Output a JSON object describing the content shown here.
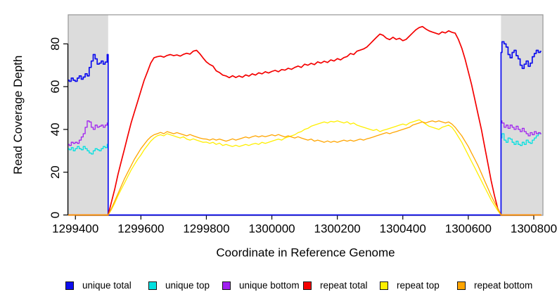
{
  "chart_data": {
    "type": "line",
    "title": "",
    "xlabel": "Coordinate in Reference Genome",
    "ylabel": "Read Coverage Depth",
    "xlim": [
      1299378,
      1300828
    ],
    "ylim": [
      0,
      93.6
    ],
    "xticks": [
      1299400,
      1299600,
      1299800,
      1300000,
      1300200,
      1300400,
      1300600,
      1300800
    ],
    "yticks": [
      0,
      20,
      40,
      60,
      80
    ],
    "grid": false,
    "legend_position": "bottom",
    "shade_color": "#dcdcdc",
    "shaded_regions": [
      {
        "name": "left-flank",
        "x1": 1299378,
        "x2": 1299500
      },
      {
        "name": "right-flank",
        "x1": 1300700,
        "x2": 1300828
      }
    ],
    "series": [
      {
        "name": "unique total",
        "color": "#0d0dee",
        "width": 1.7,
        "segments": [
          {
            "x0": 1299378,
            "dx": 6.1,
            "step": true,
            "v": [
              63,
              62.5,
              64,
              63,
              62.5,
              64,
              65,
              63.5,
              64.5,
              66,
              65,
              69,
              72,
              75,
              73,
              70.5,
              71,
              72,
              70.5,
              71.5,
              75
            ]
          },
          {
            "x0": 1299500,
            "dx": 1200,
            "v": [
              0,
              0
            ]
          },
          {
            "x0": 1300700,
            "dx": 6.15,
            "step": true,
            "v": [
              76,
              81,
              80,
              78.5,
              75,
              73.5,
              76,
              77,
              74.5,
              73,
              70,
              68.5,
              70.5,
              72,
              69.5,
              71,
              74,
              75.5,
              77,
              76,
              76.5
            ]
          }
        ]
      },
      {
        "name": "unique top",
        "color": "#00e0e0",
        "width": 1.3,
        "segments": [
          {
            "x0": 1299378,
            "dx": 6.1,
            "step": true,
            "v": [
              31,
              30.5,
              31.5,
              30,
              31,
              32,
              31,
              30.5,
              32,
              31,
              30,
              29,
              28.5,
              30,
              31,
              30.5,
              30,
              31,
              32,
              31.5,
              33
            ]
          },
          {
            "x0": 1299500,
            "dx": 1200,
            "v": [
              0,
              0
            ]
          },
          {
            "x0": 1300700,
            "dx": 6.15,
            "step": true,
            "v": [
              36,
              38,
              35,
              34,
              36,
              35.5,
              34,
              33,
              34.5,
              33,
              32.5,
              34,
              33,
              35,
              34,
              33.5,
              35,
              36,
              37,
              38,
              38
            ]
          }
        ]
      },
      {
        "name": "unique bottom",
        "color": "#a020f0",
        "width": 1.3,
        "segments": [
          {
            "x0": 1299378,
            "dx": 6.1,
            "step": true,
            "v": [
              33,
              32.5,
              34,
              33.5,
              34,
              33.5,
              35,
              36.5,
              38,
              41,
              44,
              43.5,
              41,
              40,
              42,
              41,
              41.5,
              42,
              41,
              42,
              43
            ]
          },
          {
            "x0": 1299500,
            "dx": 1200,
            "v": [
              0,
              0
            ]
          },
          {
            "x0": 1300700,
            "dx": 6.15,
            "step": true,
            "v": [
              44,
              43,
              41,
              42,
              40.5,
              42,
              41,
              40,
              41.5,
              40,
              39,
              40.5,
              39,
              38,
              37,
              38.5,
              37.5,
              39,
              38,
              38.5,
              38
            ]
          }
        ]
      },
      {
        "name": "repeat total",
        "color": "#f40000",
        "width": 1.7,
        "segments": [
          {
            "x0": 1299378,
            "dx": 122,
            "v": [
              0,
              0
            ]
          },
          {
            "x0": 1299500,
            "dx": 10,
            "v": [
              0,
              6,
              12,
              19,
              25,
              31,
              37,
              43,
              48,
              53,
              58,
              63,
              67,
              71,
              73.5,
              74,
              74.3,
              73.8,
              74.6,
              75,
              74.5,
              74.8,
              74.3,
              75.1,
              75.6,
              75.2,
              76.6,
              77,
              75.4,
              73.4,
              71.6,
              70.4,
              69.6,
              67.4,
              66.6,
              65.4,
              65,
              64.2,
              65.1,
              64.3,
              65,
              64.4,
              65.5,
              64.9,
              66,
              65.4,
              66.5,
              66,
              67,
              66.4,
              67.1,
              67.6,
              67,
              68,
              67.7,
              68.6,
              68.1,
              69,
              69.6,
              69,
              70.5,
              70,
              70.9,
              70.3,
              71.6,
              71,
              71.9,
              71.3,
              72.5,
              72,
              73.1,
              72.5,
              73.6,
              74.1,
              75.5,
              75,
              76.6,
              77.1,
              77.6,
              78.5,
              80,
              81.6,
              83.1,
              84.6,
              84,
              82.6,
              82,
              83.1,
              82.1,
              82.6,
              81.5,
              82.1,
              83.6,
              85.1,
              86.6,
              87.6,
              88.1,
              87,
              86.1,
              85.5,
              85,
              84.5,
              85.6,
              85.1,
              86.1,
              85.4,
              85,
              82,
              78,
              73,
              67,
              61,
              54,
              47,
              40,
              32,
              24,
              16,
              9,
              3,
              0
            ]
          },
          {
            "x0": 1300700,
            "dx": 123,
            "v": [
              0,
              0
            ]
          }
        ]
      },
      {
        "name": "repeat top",
        "color": "#ffef00",
        "width": 1.3,
        "segments": [
          {
            "x0": 1299378,
            "dx": 122,
            "v": [
              0,
              0
            ]
          },
          {
            "x0": 1299500,
            "dx": 10,
            "v": [
              0,
              2.5,
              5.5,
              9,
              12,
              15,
              18,
              21,
              23.5,
              26,
              28,
              30.5,
              32.5,
              34.5,
              36,
              37,
              37.5,
              37,
              38,
              37.5,
              37,
              36.5,
              36,
              36.6,
              35.5,
              35,
              35.6,
              35,
              34.5,
              34,
              34.1,
              33.5,
              34,
              33,
              33.6,
              32.5,
              33,
              32.5,
              32,
              32.6,
              32,
              32.5,
              33,
              32.5,
              33.1,
              33.5,
              33,
              34,
              33.5,
              34,
              34.5,
              35,
              35.5,
              35,
              36,
              36.5,
              37,
              37.5,
              38.5,
              39,
              40,
              40.5,
              41.5,
              42,
              42.5,
              43,
              43.5,
              43,
              43.8,
              43.5,
              44,
              43.5,
              43,
              43.6,
              42.5,
              43,
              42,
              41.5,
              41,
              40.5,
              40,
              39.5,
              40,
              39,
              39.6,
              40,
              40.5,
              41,
              41.5,
              42,
              42.5,
              42,
              43,
              43.5,
              44,
              44.5,
              43.5,
              42.5,
              41.5,
              41,
              40.5,
              40,
              41,
              41.5,
              42,
              41,
              39,
              36.5,
              34,
              31,
              28,
              25,
              22,
              19,
              16,
              13,
              10,
              7,
              4.5,
              2,
              0
            ]
          },
          {
            "x0": 1300700,
            "dx": 123,
            "v": [
              0,
              0
            ]
          }
        ]
      },
      {
        "name": "repeat bottom",
        "color": "#ffa500",
        "width": 1.3,
        "segments": [
          {
            "x0": 1299378,
            "dx": 122,
            "v": [
              0,
              0
            ]
          },
          {
            "x0": 1299500,
            "dx": 10,
            "v": [
              0,
              3,
              6.5,
              10,
              13.5,
              17,
              20,
              23,
              26,
              28.5,
              31,
              33,
              35,
              36.5,
              37.5,
              38,
              38.6,
              38,
              39,
              38.5,
              38,
              38.5,
              38,
              37.5,
              37,
              37.6,
              37,
              36.5,
              36,
              35.6,
              35.5,
              35,
              35.6,
              35,
              35.5,
              35,
              34.5,
              35,
              35.6,
              35,
              35.5,
              36,
              36.5,
              36,
              36.6,
              37,
              36.5,
              37,
              36.6,
              37,
              37.5,
              37,
              37.6,
              37,
              36.5,
              37,
              36.5,
              36,
              36.6,
              36,
              35.5,
              35,
              35.5,
              34.5,
              35,
              34.5,
              34,
              34.6,
              34,
              34.5,
              34,
              34.5,
              35,
              34.5,
              35,
              34.5,
              35,
              35.5,
              35,
              35.6,
              36,
              36.5,
              37,
              37.5,
              38,
              38.5,
              38,
              38.6,
              39,
              39.5,
              40,
              40.5,
              41,
              42,
              42.5,
              43,
              43.5,
              43,
              43.6,
              44,
              43.5,
              44,
              43.5,
              43,
              43.5,
              42.5,
              41,
              39,
              37,
              34.5,
              32,
              29,
              26,
              23,
              19.5,
              16,
              12.5,
              9,
              6,
              3,
              0
            ]
          },
          {
            "x0": 1300700,
            "dx": 123,
            "v": [
              0,
              0
            ]
          }
        ]
      }
    ]
  }
}
